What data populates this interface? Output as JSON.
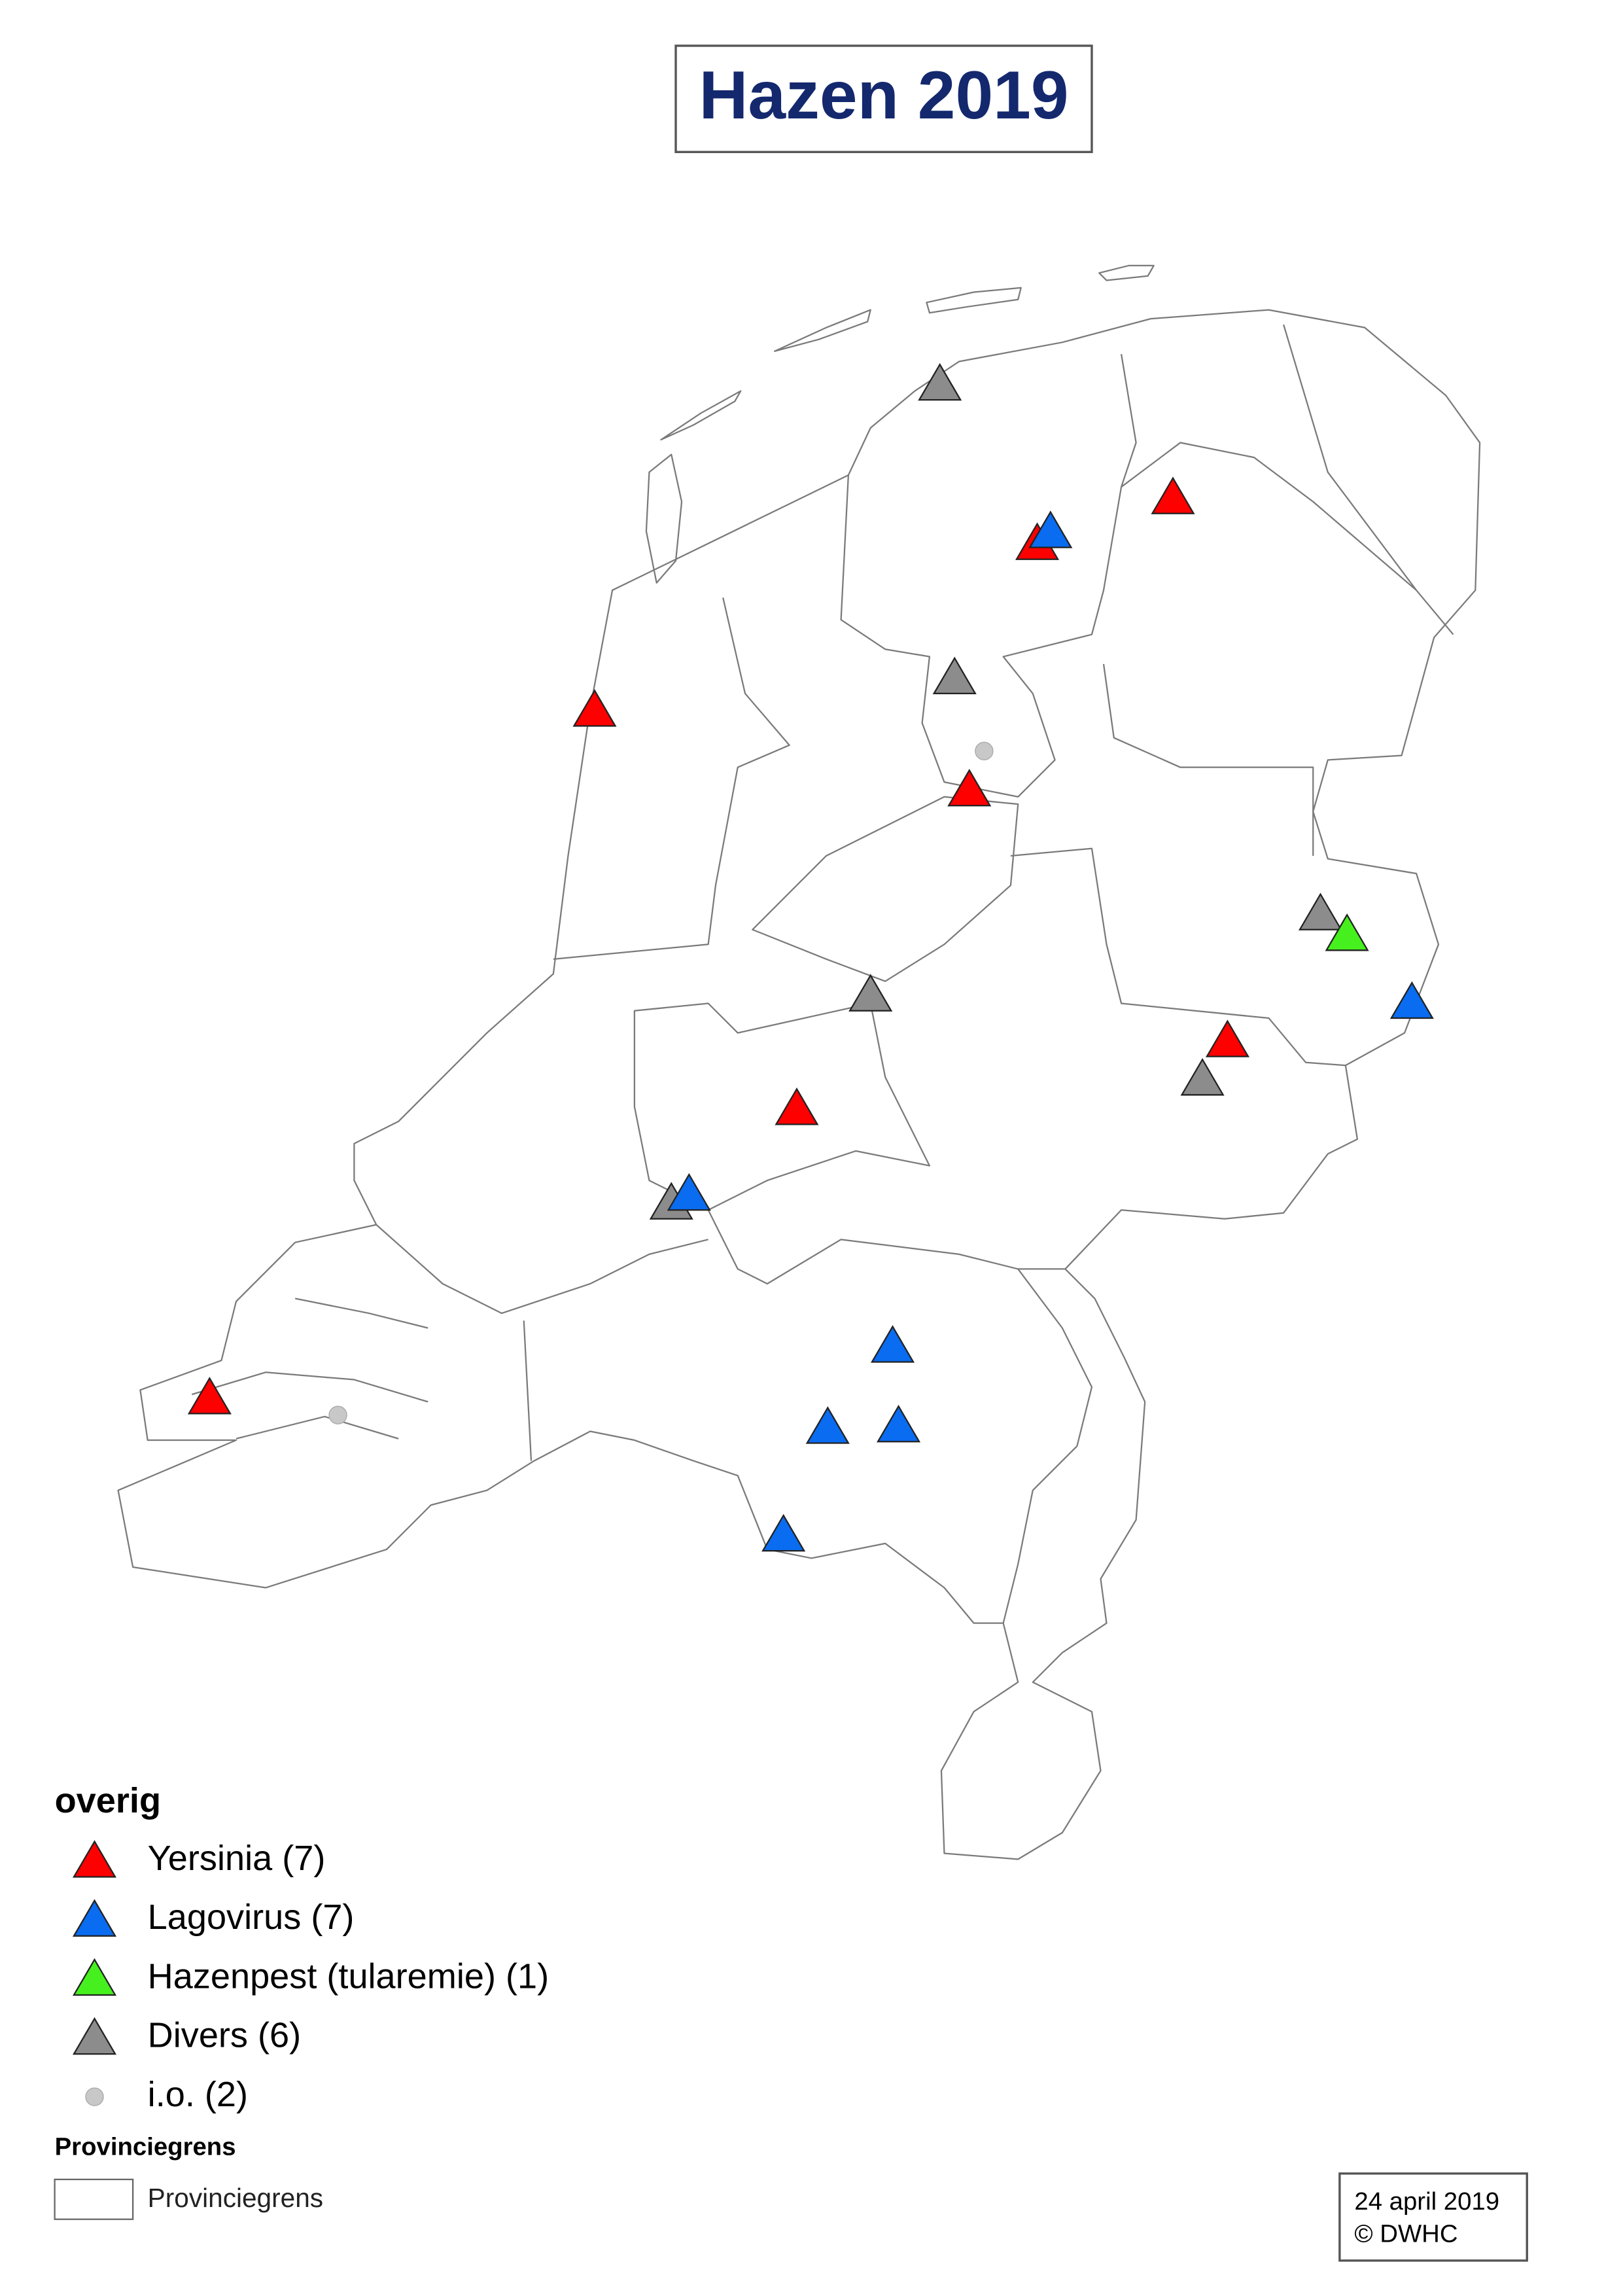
{
  "header": {
    "title": "Hazen 2019"
  },
  "legend": {
    "title": "overig",
    "items": [
      {
        "label": "Yersinia (7)",
        "shape": "triangle",
        "color": "#ff0000"
      },
      {
        "label": "Lagovirus (7)",
        "shape": "triangle",
        "color": "#0a6cf0"
      },
      {
        "label": "Hazenpest (tularemie) (1)",
        "shape": "triangle",
        "color": "#46f01e"
      },
      {
        "label": "Divers (6)",
        "shape": "triangle",
        "color": "#8c8c8c"
      },
      {
        "label": "i.o. (2)",
        "shape": "dot",
        "color": "#c8c8c8"
      }
    ]
  },
  "boundary_legend": {
    "title": "Provinciegrens",
    "label": "Provinciegrens"
  },
  "footer": {
    "date": "24 april 2019",
    "copyright": "© DWHC"
  }
}
